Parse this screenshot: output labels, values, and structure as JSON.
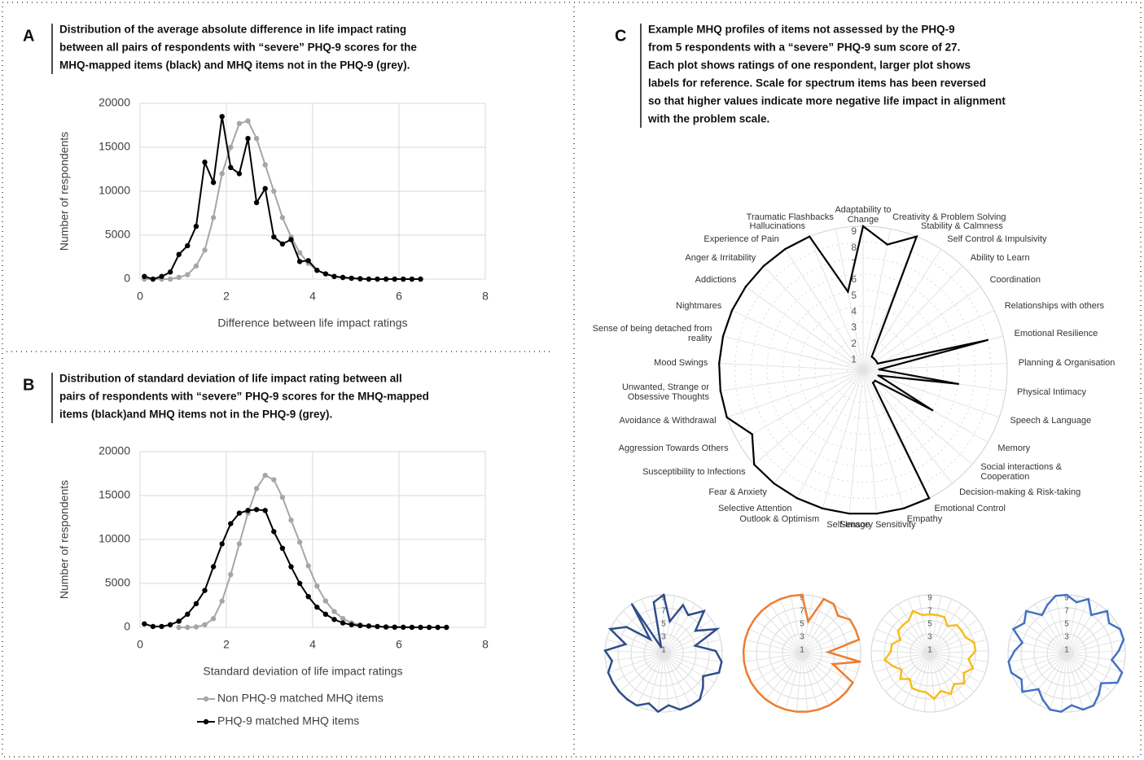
{
  "chart_data": [
    {
      "type": "line",
      "panel": "A",
      "caption": [
        "Distribution of the average absolute difference in life impact rating",
        "between all pairs of respondents with “severe” PHQ-9 scores for the",
        "MHQ-mapped items (black) and MHQ items not in the PHQ-9 (grey)."
      ],
      "xlabel": "Difference between life impact ratings",
      "ylabel": "Number of respondents",
      "x": [
        0.1,
        0.3,
        0.5,
        0.7,
        0.9,
        1.1,
        1.3,
        1.5,
        1.7,
        1.9,
        2.1,
        2.3,
        2.5,
        2.7,
        2.9,
        3.1,
        3.3,
        3.5,
        3.7,
        3.9,
        4.1,
        4.3,
        4.5,
        4.7,
        4.9,
        5.1,
        5.3,
        5.5,
        5.7,
        5.9,
        6.1,
        6.3,
        6.5
      ],
      "series": [
        {
          "color": "#a6a6a6",
          "values": [
            0,
            0,
            0,
            0,
            200,
            500,
            1500,
            3300,
            7000,
            12000,
            15000,
            17700,
            18000,
            16000,
            13000,
            10000,
            7000,
            4800,
            3000,
            1800,
            1000,
            600,
            300,
            150,
            80,
            0,
            0,
            0,
            0,
            0,
            0,
            0,
            0
          ]
        },
        {
          "color": "#000000",
          "values": [
            300,
            0,
            300,
            800,
            2800,
            3800,
            6000,
            13300,
            11000,
            18500,
            12700,
            12000,
            16000,
            8700,
            10300,
            4800,
            4000,
            4500,
            2000,
            2100,
            1000,
            600,
            300,
            200,
            100,
            50,
            0,
            0,
            0,
            0,
            0,
            0,
            0
          ]
        }
      ],
      "xlim": [
        0,
        8
      ],
      "xticks": [
        0,
        2,
        4,
        6,
        8
      ],
      "ylim": [
        0,
        20000
      ],
      "yticks": [
        0,
        5000,
        10000,
        15000,
        20000
      ],
      "grid": true
    },
    {
      "type": "line",
      "panel": "B",
      "caption": [
        "Distribution of standard deviation of life impact rating between all",
        "pairs of respondents with “severe” PHQ-9 scores for the MHQ-mapped",
        "items (black)and MHQ items not in the PHQ-9 (grey)."
      ],
      "xlabel": "Standard deviation of life impact ratings",
      "ylabel": "Number of respondents",
      "x": [
        0.1,
        0.3,
        0.5,
        0.7,
        0.9,
        1.1,
        1.3,
        1.5,
        1.7,
        1.9,
        2.1,
        2.3,
        2.5,
        2.7,
        2.9,
        3.1,
        3.3,
        3.5,
        3.7,
        3.9,
        4.1,
        4.3,
        4.5,
        4.7,
        4.9,
        5.1,
        5.3,
        5.5,
        5.7,
        5.9,
        6.1,
        6.3,
        6.5,
        6.7,
        6.9,
        7.1
      ],
      "series": [
        {
          "name": "Non PHQ-9 matched MHQ items",
          "color": "#a6a6a6",
          "values": [
            null,
            null,
            null,
            null,
            0,
            0,
            50,
            300,
            1000,
            3000,
            6000,
            9500,
            13000,
            15800,
            17300,
            16800,
            14800,
            12200,
            9700,
            7000,
            4700,
            3000,
            1800,
            1000,
            500,
            300,
            150,
            80,
            30,
            0,
            0,
            0,
            0,
            0,
            0,
            0
          ]
        },
        {
          "name": "PHQ-9 matched MHQ items",
          "color": "#000000",
          "values": [
            400,
            100,
            100,
            300,
            700,
            1500,
            2700,
            4200,
            6900,
            9500,
            11800,
            13000,
            13300,
            13400,
            13300,
            10900,
            9000,
            6900,
            5000,
            3500,
            2300,
            1500,
            900,
            500,
            300,
            200,
            150,
            100,
            50,
            30,
            20,
            10,
            0,
            0,
            0,
            0
          ]
        }
      ],
      "xlim": [
        0,
        8
      ],
      "xticks": [
        0,
        2,
        4,
        6,
        8
      ],
      "ylim": [
        0,
        20000
      ],
      "yticks": [
        0,
        5000,
        10000,
        15000,
        20000
      ],
      "grid": true,
      "legend": "bottom"
    },
    {
      "type": "radar",
      "panel": "C",
      "caption": [
        "Example MHQ profiles of items not assessed by the PHQ-9",
        "from 5 respondents with a “severe” PHQ-9 sum score of 27.",
        "Each plot shows ratings of one respondent, larger plot shows",
        "labels for reference. Scale for spectrum items has been reversed",
        "so that higher values indicate more negative life impact in alignment",
        "with the problem scale."
      ],
      "categories": [
        "Adaptability to Change",
        "Creativity & Problem Solving",
        "Stability & Calmness",
        "Self Control & Impulsivity",
        "Ability to Learn",
        "Coordination",
        "Relationships with others",
        "Emotional Resilience",
        "Planning & Organisation",
        "Physical Intimacy",
        "Speech & Language",
        "Memory",
        "Social interactions & Cooperation",
        "Decision-making & Risk-taking",
        "Emotional Control",
        "Empathy",
        "Sensory Sensitivity",
        "Self-Image",
        "Outlook & Optimism",
        "Selective Attention",
        "Fear & Anxiety",
        "Susceptibility to Infections",
        "Aggression Towards Others",
        "Avoidance & Withdrawal",
        "Unwanted, Strange or Obsessive Thoughts",
        "Mood Swings",
        "Sense of being detached from reality",
        "Nightmares",
        "Addictions",
        "Anger & Irritability",
        "Experience of Pain",
        "Hallucinations",
        "Traumatic Flashbacks"
      ],
      "values": [
        9,
        8,
        9,
        1,
        1,
        1,
        1,
        8,
        1,
        6,
        1,
        5,
        1,
        1,
        9,
        9,
        9,
        9,
        9,
        9,
        9,
        9,
        8,
        9,
        9,
        9,
        9,
        9,
        9,
        9,
        9,
        9,
        5
      ],
      "color": "#000000",
      "rlim": [
        0,
        9
      ],
      "rticks": [
        1,
        2,
        3,
        4,
        5,
        6,
        7,
        8,
        9
      ]
    },
    {
      "type": "radar",
      "values": [
        9,
        5,
        8,
        7,
        9,
        6,
        9,
        5,
        8,
        9,
        9,
        7,
        8,
        9,
        9,
        9,
        8,
        9,
        8,
        9,
        9,
        9,
        9,
        9,
        8,
        9,
        6,
        9,
        7,
        3,
        9,
        1,
        8
      ],
      "color": "#2f4d8c",
      "rlim": [
        0,
        9
      ],
      "rticks": [
        1,
        3,
        5,
        7,
        9
      ]
    },
    {
      "type": "radar",
      "values": [
        9,
        5,
        9,
        9,
        8,
        9,
        9,
        9,
        4,
        9,
        5,
        9,
        9,
        9,
        9,
        9,
        9,
        9,
        9,
        9,
        9,
        9,
        9,
        9,
        9,
        9,
        9,
        9,
        9,
        9,
        9,
        9,
        9
      ],
      "color": "#ed7d31",
      "rlim": [
        0,
        9
      ],
      "rticks": [
        1,
        3,
        5,
        7,
        9
      ]
    },
    {
      "type": "radar",
      "values": [
        6,
        6,
        6,
        5,
        6,
        6,
        6,
        7,
        7,
        6,
        7,
        6,
        7,
        6,
        7,
        6,
        7,
        6,
        6,
        6,
        5,
        6,
        5,
        6,
        7,
        6,
        6,
        5,
        6,
        6,
        6,
        7,
        6
      ],
      "color": "#f5bd1f",
      "rlim": [
        0,
        9
      ],
      "rticks": [
        1,
        3,
        5,
        7,
        9
      ]
    },
    {
      "type": "radar",
      "values": [
        9,
        8,
        9,
        7,
        9,
        8,
        9,
        9,
        8,
        7,
        9,
        9,
        7,
        8,
        9,
        9,
        8,
        9,
        9,
        8,
        7,
        9,
        8,
        9,
        9,
        8,
        7,
        9,
        8,
        9,
        7,
        8,
        9
      ],
      "color": "#4472c4",
      "rlim": [
        0,
        9
      ],
      "rticks": [
        1,
        3,
        5,
        7,
        9
      ]
    }
  ]
}
